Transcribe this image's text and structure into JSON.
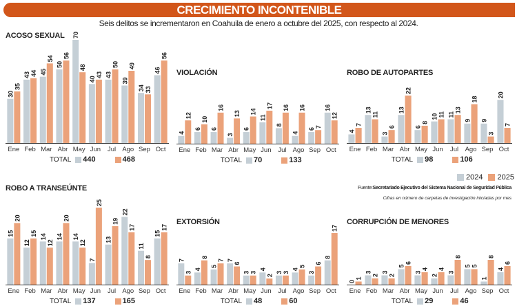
{
  "header": {
    "title": "CRECIMIENTO INCONTENIBLE",
    "subtitle": "Seis delitos se incrementaron en Coahuila de enero a octubre del 2025, con respecto al 2024."
  },
  "legend": {
    "label_2024": "2024",
    "label_2025": "2025",
    "color_2024": "#c5cfd6",
    "color_2025": "#eba27a"
  },
  "source": {
    "label": "Fuente:",
    "text": "Secretariado Ejecutivo del Sistema Nacional de Seguridad Pública",
    "note": "Cifras en número de carpetas de investigación iniciadas por mes"
  },
  "total_label": "TOTAL",
  "chart_data": [
    {
      "type": "bar",
      "title": "ACOSO SEXUAL",
      "categories": [
        "Ene",
        "Feb",
        "Mar",
        "Abr",
        "May",
        "Jun",
        "Jul",
        "Ago",
        "Sep",
        "Oct"
      ],
      "series": [
        {
          "name": "2024",
          "values": [
            30,
            43,
            45,
            50,
            70,
            40,
            43,
            39,
            34,
            46
          ]
        },
        {
          "name": "2025",
          "values": [
            35,
            44,
            54,
            56,
            48,
            43,
            50,
            49,
            33,
            56
          ]
        }
      ],
      "totals": {
        "2024": "440",
        "2025": "468"
      }
    },
    {
      "type": "bar",
      "title": "VIOLACIÓN",
      "categories": [
        "Ene",
        "Feb",
        "Mar",
        "Abr",
        "May",
        "Jun",
        "Jul",
        "Ago",
        "Sep",
        "Oct"
      ],
      "series": [
        {
          "name": "2024",
          "values": [
            4,
            6,
            6,
            3,
            6,
            11,
            8,
            4,
            6,
            16
          ]
        },
        {
          "name": "2025",
          "values": [
            12,
            10,
            16,
            13,
            14,
            17,
            16,
            16,
            7,
            12
          ]
        }
      ],
      "totals": {
        "2024": "70",
        "2025": "133"
      }
    },
    {
      "type": "bar",
      "title": "ROBO DE AUTOPARTES",
      "categories": [
        "Ene",
        "Feb",
        "Mar",
        "Abr",
        "May",
        "Jun",
        "Jul",
        "Ago",
        "Sep",
        "Oct"
      ],
      "series": [
        {
          "name": "2024",
          "values": [
            4,
            13,
            3,
            13,
            6,
            10,
            11,
            9,
            9,
            20
          ]
        },
        {
          "name": "2025",
          "values": [
            7,
            11,
            6,
            22,
            8,
            11,
            13,
            18,
            3,
            7
          ]
        }
      ],
      "totals": {
        "2024": "98",
        "2025": "106"
      }
    },
    {
      "type": "bar",
      "title": "ROBO A TRANSEÚNTE",
      "categories": [
        "Ene",
        "Feb",
        "Mar",
        "Abr",
        "May",
        "Jun",
        "Jul",
        "Ago",
        "Sep",
        "Oct"
      ],
      "series": [
        {
          "name": "2024",
          "values": [
            15,
            12,
            14,
            14,
            14,
            7,
            13,
            22,
            11,
            15
          ]
        },
        {
          "name": "2025",
          "values": [
            20,
            15,
            12,
            20,
            12,
            25,
            19,
            17,
            8,
            17
          ]
        }
      ],
      "totals": {
        "2024": "137",
        "2025": "165"
      }
    },
    {
      "type": "bar",
      "title": "EXTORSIÓN",
      "categories": [
        "Ene",
        "Feb",
        "Mar",
        "Abr",
        "May",
        "Jun",
        "Jul",
        "Ago",
        "Sep",
        "Oct"
      ],
      "series": [
        {
          "name": "2024",
          "values": [
            7,
            4,
            5,
            7,
            3,
            4,
            3,
            4,
            3,
            8
          ]
        },
        {
          "name": "2025",
          "values": [
            3,
            8,
            7,
            6,
            3,
            2,
            3,
            5,
            6,
            17
          ]
        }
      ],
      "totals": {
        "2024": "48",
        "2025": "60"
      }
    },
    {
      "type": "bar",
      "title": "CORRUPCIÓN DE MENORES",
      "categories": [
        "Ene",
        "Feb",
        "Mar",
        "Abr",
        "May",
        "Jun",
        "Jul",
        "Ago",
        "Sep",
        "Oct"
      ],
      "series": [
        {
          "name": "2024",
          "values": [
            0,
            3,
            3,
            5,
            3,
            2,
            3,
            5,
            1,
            4
          ]
        },
        {
          "name": "2025",
          "values": [
            1,
            2,
            2,
            6,
            4,
            4,
            8,
            5,
            8,
            6
          ]
        }
      ],
      "totals": {
        "2024": "29",
        "2025": "46"
      }
    }
  ]
}
